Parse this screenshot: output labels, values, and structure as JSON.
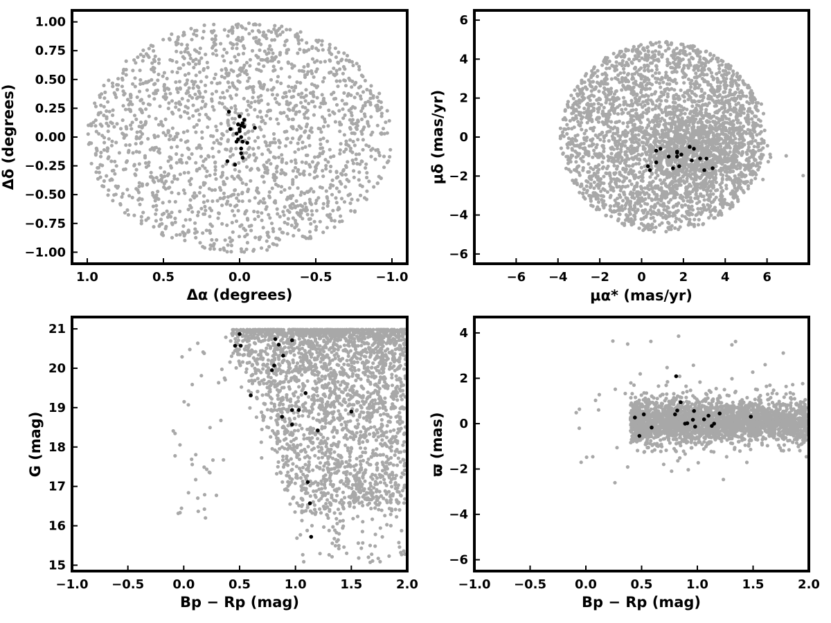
{
  "colors": {
    "field": "#a8a8a8",
    "members": "#000000",
    "axes": "#000000",
    "background": "#ffffff"
  },
  "chart_data": [
    {
      "type": "scatter",
      "title": "",
      "xlabel": "Δα (degrees)",
      "ylabel": "Δδ (degrees)",
      "xlim": [
        1.1,
        -1.1
      ],
      "ylim": [
        -1.1,
        1.1
      ],
      "x_inverted": true,
      "xticks": [
        1.0,
        0.5,
        0.0,
        -0.5,
        -1.0
      ],
      "xtick_labels": [
        "1.0",
        "0.5",
        "0.0",
        "−0.5",
        "−1.0"
      ],
      "yticks": [
        -1.0,
        -0.75,
        -0.5,
        -0.25,
        0.0,
        0.25,
        0.5,
        0.75,
        1.0
      ],
      "ytick_labels": [
        "−1.00",
        "−0.75",
        "−0.50",
        "−0.25",
        "0.00",
        "0.25",
        "0.50",
        "0.75",
        "1.00"
      ],
      "grid": false,
      "field_distribution": {
        "shape": "disk",
        "center": [
          0,
          0
        ],
        "radius": 1.0,
        "count": 1800
      },
      "members": {
        "x": [
          0.07,
          0.0,
          0.01,
          0.0,
          0.0,
          -0.03,
          -0.02,
          -0.01,
          -0.02,
          -0.1,
          0.02,
          -0.01,
          -0.01,
          0.08,
          0.03,
          -0.05,
          0.01,
          -0.03,
          0.06,
          -0.01,
          0.02,
          -0.02
        ],
        "y": [
          0.22,
          0.18,
          0.11,
          0.05,
          0.07,
          0.09,
          0.12,
          0.0,
          -0.04,
          0.08,
          -0.04,
          -0.1,
          -0.14,
          -0.21,
          -0.24,
          -0.05,
          -0.02,
          0.15,
          0.07,
          0.1,
          0.03,
          -0.18
        ]
      }
    },
    {
      "type": "scatter",
      "title": "",
      "xlabel": "μα* (mas/yr)",
      "ylabel": "μδ (mas/yr)",
      "xlim": [
        -8,
        8
      ],
      "ylim": [
        -6.5,
        6.5
      ],
      "xticks": [
        -6,
        -4,
        -2,
        0,
        2,
        4,
        6
      ],
      "xtick_labels": [
        "−6",
        "−4",
        "−2",
        "0",
        "2",
        "4",
        "6"
      ],
      "yticks": [
        -6,
        -4,
        -2,
        0,
        2,
        4,
        6
      ],
      "ytick_labels": [
        "−6",
        "−4",
        "−2",
        "0",
        "2",
        "4",
        "6"
      ],
      "grid": false,
      "field_distribution": {
        "shape": "disk",
        "center": [
          1.0,
          0.0
        ],
        "radius": 4.9,
        "count": 2600,
        "extra_center": [
          2.5,
          -0.5
        ]
      },
      "members": {
        "x": [
          0.3,
          0.4,
          0.7,
          0.7,
          0.9,
          1.3,
          1.5,
          1.7,
          1.7,
          1.8,
          1.9,
          2.3,
          2.4,
          2.5,
          2.8,
          3.0,
          3.1,
          3.4,
          1.7
        ],
        "y": [
          -1.5,
          -1.7,
          -0.7,
          -1.3,
          -0.6,
          -1.0,
          -1.6,
          -0.8,
          -1.0,
          -1.5,
          -0.9,
          -0.5,
          -1.2,
          -0.6,
          -1.1,
          -1.7,
          -1.1,
          -1.6,
          -0.75
        ]
      }
    },
    {
      "type": "scatter",
      "title": "",
      "xlabel": "Bp − Rp (mag)",
      "ylabel": "G (mag)",
      "xlim": [
        -1.0,
        2.0
      ],
      "ylim": [
        14.85,
        21.3
      ],
      "xticks": [
        -1.0,
        -0.5,
        0.0,
        0.5,
        1.0,
        1.5,
        2.0
      ],
      "xtick_labels": [
        "−1.0",
        "−0.5",
        "0.0",
        "0.5",
        "1.0",
        "1.5",
        "2.0"
      ],
      "yticks": [
        15,
        16,
        17,
        18,
        19,
        20,
        21
      ],
      "ytick_labels": [
        "15",
        "16",
        "17",
        "18",
        "19",
        "20",
        "21"
      ],
      "grid": false,
      "field_distribution": {
        "shape": "cmd",
        "count": 2600
      },
      "members": {
        "x": [
          0.5,
          0.46,
          0.51,
          0.82,
          0.85,
          0.89,
          0.97,
          0.81,
          0.79,
          0.6,
          1.09,
          0.97,
          1.03,
          0.88,
          0.97,
          1.5,
          1.2,
          1.11,
          1.13,
          1.14
        ],
        "y": [
          20.87,
          20.57,
          20.57,
          20.74,
          20.6,
          20.32,
          20.71,
          20.07,
          19.95,
          19.31,
          19.37,
          18.94,
          18.94,
          18.77,
          18.57,
          18.9,
          18.42,
          17.11,
          16.57,
          15.72
        ]
      }
    },
    {
      "type": "scatter",
      "title": "",
      "xlabel": "Bp − Rp (mag)",
      "ylabel": "ϖ (mas)",
      "xlim": [
        -1.0,
        2.0
      ],
      "ylim": [
        -6.5,
        4.7
      ],
      "xticks": [
        -1.0,
        -0.5,
        0.0,
        0.5,
        1.0,
        1.5,
        2.0
      ],
      "xtick_labels": [
        "−1.0",
        "−0.5",
        "0.0",
        "0.5",
        "1.0",
        "1.5",
        "2.0"
      ],
      "yticks": [
        -6,
        -4,
        -2,
        0,
        2,
        4
      ],
      "ytick_labels": [
        "−6",
        "−4",
        "−2",
        "0",
        "2",
        "4"
      ],
      "grid": false,
      "field_distribution": {
        "shape": "band",
        "count": 2600
      },
      "members": {
        "x": [
          0.44,
          0.48,
          0.52,
          0.59,
          0.8,
          0.81,
          0.82,
          0.85,
          0.89,
          0.91,
          0.96,
          0.97,
          0.98,
          1.06,
          1.1,
          1.13,
          1.15,
          1.2,
          1.48
        ],
        "y": [
          0.27,
          -0.54,
          0.41,
          -0.17,
          0.41,
          2.09,
          0.58,
          0.94,
          0.0,
          0.02,
          0.17,
          0.56,
          -0.13,
          0.19,
          0.35,
          -0.1,
          0.0,
          0.45,
          0.31
        ]
      }
    }
  ]
}
